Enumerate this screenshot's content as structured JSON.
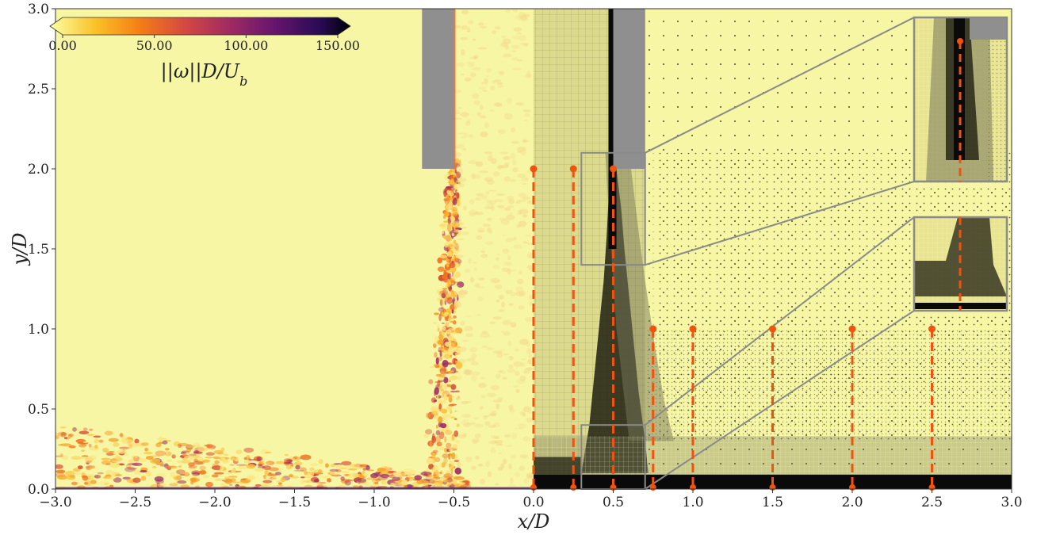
{
  "chart_data": {
    "type": "heatmap",
    "title": "",
    "xlabel": "x/D",
    "ylabel": "y/D",
    "xlim": [
      -3.0,
      3.0
    ],
    "ylim": [
      0.0,
      3.0
    ],
    "x_ticks": [
      "−3.0",
      "−2.5",
      "−2.0",
      "−1.5",
      "−1.0",
      "−0.5",
      "0.0",
      "0.5",
      "1.0",
      "1.5",
      "2.0",
      "2.5",
      "3.0"
    ],
    "y_ticks": [
      "0.0",
      "0.5",
      "1.0",
      "1.5",
      "2.0",
      "2.5",
      "3.0"
    ],
    "x_tick_values": [
      -3.0,
      -2.5,
      -2.0,
      -1.5,
      -1.0,
      -0.5,
      0.0,
      0.5,
      1.0,
      1.5,
      2.0,
      2.5,
      3.0
    ],
    "y_tick_values": [
      0.0,
      0.5,
      1.0,
      1.5,
      2.0,
      2.5,
      3.0
    ],
    "colorbar": {
      "label": "||ω||D/U_b",
      "label_main": "||ω||D/U",
      "label_sub": "b",
      "ticks": [
        "0.00",
        "50.00",
        "100.00",
        "150.00"
      ],
      "tick_values": [
        0,
        50,
        100,
        150
      ],
      "range": [
        0,
        150
      ],
      "colormap": "inferno_r"
    },
    "jet": {
      "x_range": [
        -0.7,
        -0.5
      ],
      "y_range": [
        2.0,
        3.0
      ],
      "color": "#8f8f8f"
    },
    "nozzle_mesh_block": {
      "x_range": [
        0.5,
        0.7
      ],
      "y_range": [
        2.0,
        3.0
      ],
      "color": "#8f8f8f"
    },
    "probe_lines": [
      {
        "x": 0.0,
        "y_top": 2.0
      },
      {
        "x": 0.25,
        "y_top": 2.0
      },
      {
        "x": 0.5,
        "y_top": 2.0
      },
      {
        "x": 0.75,
        "y_top": 1.0
      },
      {
        "x": 1.0,
        "y_top": 1.0
      },
      {
        "x": 1.5,
        "y_top": 1.0
      },
      {
        "x": 2.0,
        "y_top": 1.0
      },
      {
        "x": 2.5,
        "y_top": 1.0
      }
    ],
    "zoom_boxes": [
      {
        "x_range": [
          0.3,
          0.7
        ],
        "y_range": [
          1.4,
          2.1
        ]
      },
      {
        "x_range": [
          0.3,
          0.7
        ],
        "y_range": [
          0.0,
          0.4
        ]
      }
    ],
    "colors": {
      "background": "#f6f6a4",
      "probe": "#f2520f",
      "zoom_frame": "#8a8a8a",
      "mesh_dark": "#1f1f12",
      "mesh_mid": "#77775a",
      "wall": "#0a0a0a"
    }
  }
}
